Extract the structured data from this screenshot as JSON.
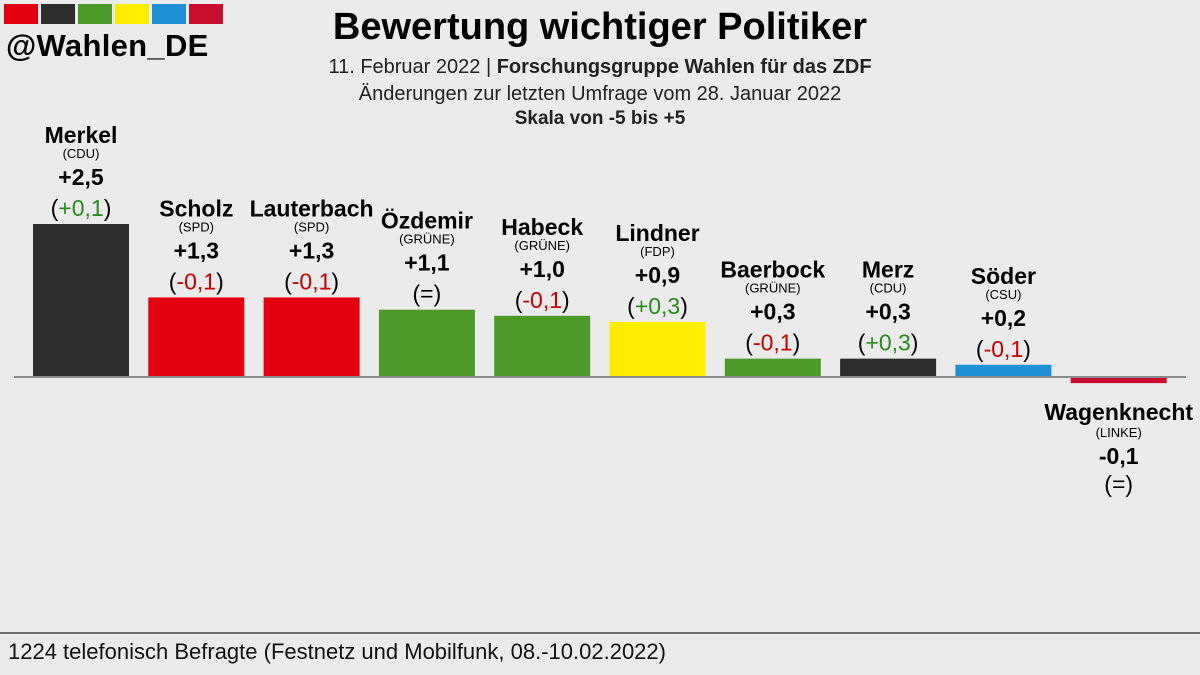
{
  "brand": {
    "handle": "@Wahlen_DE",
    "colors": [
      "#e3000f",
      "#2d2d2d",
      "#4d9a2b",
      "#ffed00",
      "#1e90d6",
      "#c8102e"
    ]
  },
  "header": {
    "title": "Bewertung wichtiger Politiker",
    "date": "11. Februar 2022",
    "separator": "|",
    "source": "Forschungsgruppe Wahlen für das ZDF",
    "changes_note": "Änderungen zur letzten Umfrage vom 28. Januar 2022",
    "scale_note": "Skala von -5 bis +5"
  },
  "footer": {
    "text": "1224 telefonisch Befragte (Festnetz und Mobilfunk, 08.-10.02.2022)"
  },
  "chart_data": {
    "type": "bar",
    "title": "Bewertung wichtiger Politiker",
    "ylim": [
      -5,
      5
    ],
    "grid": false,
    "categories": [
      "Merkel",
      "Scholz",
      "Lauterbach",
      "Özdemir",
      "Habeck",
      "Lindner",
      "Baerbock",
      "Merz",
      "Söder",
      "Wagenknecht"
    ],
    "parties": [
      "(CDU)",
      "(SPD)",
      "(SPD)",
      "(GRÜNE)",
      "(GRÜNE)",
      "(FDP)",
      "(GRÜNE)",
      "(CDU)",
      "(CSU)",
      "(LINKE)"
    ],
    "values": [
      2.5,
      1.3,
      1.3,
      1.1,
      1.0,
      0.9,
      0.3,
      0.3,
      0.2,
      -0.1
    ],
    "value_labels": [
      "+2,5",
      "+1,3",
      "+1,3",
      "+1,1",
      "+1,0",
      "+0,9",
      "+0,3",
      "+0,3",
      "+0,2",
      "-0,1"
    ],
    "changes": [
      0.1,
      -0.1,
      -0.1,
      0,
      -0.1,
      0.3,
      -0.1,
      0.3,
      -0.1,
      0
    ],
    "change_labels": [
      "+0,1",
      "-0,1",
      "-0,1",
      "=",
      "-0,1",
      "+0,3",
      "-0,1",
      "+0,3",
      "-0,1",
      "="
    ],
    "colors": [
      "#2d2d2d",
      "#e3000f",
      "#e3000f",
      "#4d9a2b",
      "#4d9a2b",
      "#ffed00",
      "#4d9a2b",
      "#2d2d2d",
      "#1e90d6",
      "#c8102e"
    ],
    "change_colors": {
      "positive": "#2a8a1f",
      "negative": "#c40000",
      "neutral": "#000000"
    }
  }
}
